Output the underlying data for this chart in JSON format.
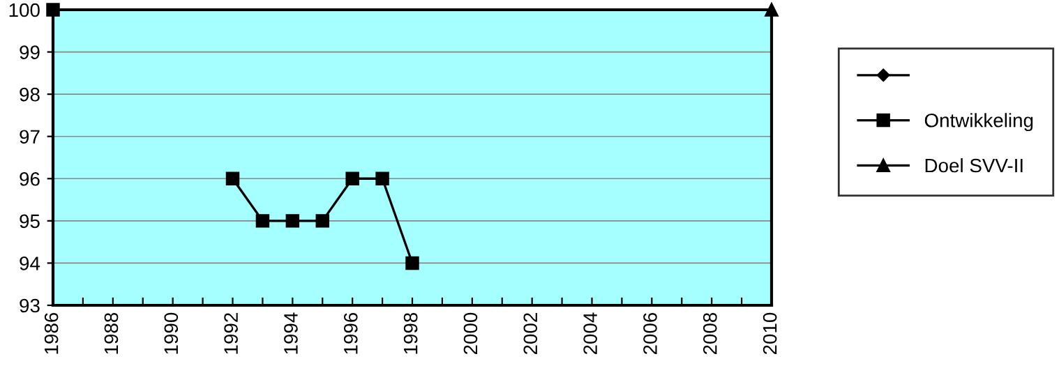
{
  "chart_data": {
    "type": "line",
    "x": [
      1986,
      1989,
      1992,
      1993,
      1994,
      1995,
      1996,
      1997,
      1998
    ],
    "series": [
      {
        "color": "#000000",
        "marker": "diamond",
        "values": [
          null,
          null,
          null,
          null,
          null,
          null,
          null,
          null,
          null
        ]
      },
      {
        "name": "Ontwikkeling",
        "color": "#000000",
        "marker": "square",
        "values": [
          100,
          null,
          96,
          95,
          95,
          95,
          96,
          96,
          94
        ]
      },
      {
        "name": "Doel SVV-II",
        "color": "#000000",
        "marker": "triangle",
        "x": [
          2010
        ],
        "values": [
          100
        ]
      }
    ],
    "xlim": [
      1986,
      2010
    ],
    "xticks": [
      1986,
      {
        "value": 1987,
        "label": null
      },
      1988,
      {
        "value": 1989,
        "label": null
      },
      1990,
      {
        "value": 1991,
        "label": null
      },
      1992,
      {
        "value": 1993,
        "label": null
      },
      1994,
      {
        "value": 1995,
        "label": null
      },
      1996,
      {
        "value": 1997,
        "label": null
      },
      1998,
      {
        "value": 1999,
        "label": null
      },
      2000,
      {
        "value": 2001,
        "label": null
      },
      2002,
      {
        "value": 2003,
        "label": null
      },
      2004,
      {
        "value": 2005,
        "label": null
      },
      2006,
      {
        "value": 2007,
        "label": null
      },
      2008,
      {
        "value": 2009,
        "label": null
      },
      2010
    ],
    "ylim": [
      93,
      100
    ],
    "yticks": [
      93,
      94,
      95,
      96,
      97,
      98,
      99,
      100
    ],
    "grid": "y",
    "legend": "right",
    "line_style": "solid"
  }
}
